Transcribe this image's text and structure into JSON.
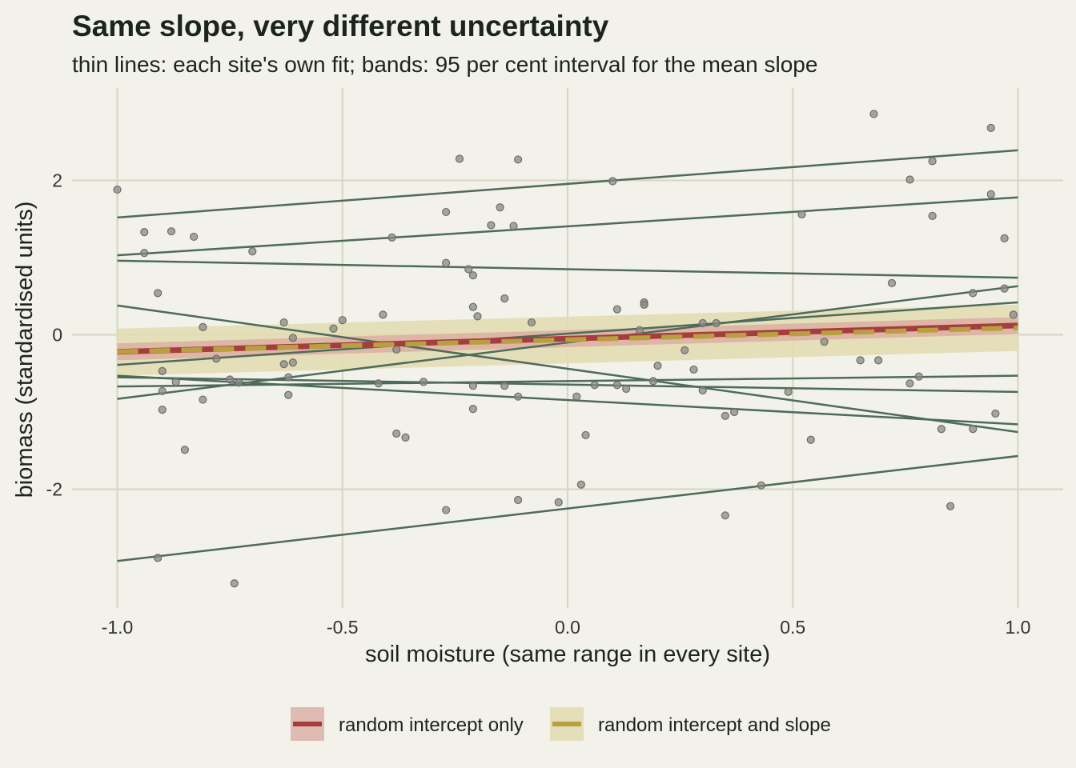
{
  "chart_data": {
    "type": "scatter",
    "title": "Same slope, very different uncertainty",
    "subtitle": "thin lines: each site's own fit; bands: 95 per cent interval for the mean slope",
    "xlabel": "soil moisture (same range in every site)",
    "ylabel": "biomass (standardised units)",
    "xlim": [
      -1.1,
      1.1
    ],
    "ylim": [
      -3.5,
      3.2
    ],
    "xticks": [
      -1.0,
      -0.5,
      0.0,
      0.5,
      1.0
    ],
    "xtick_labels": [
      "-1.0",
      "-0.5",
      "0.0",
      "0.5",
      "1.0"
    ],
    "yticks": [
      2,
      0,
      -2
    ],
    "ytick_labels": [
      "2",
      "0",
      "-2"
    ],
    "grid": true,
    "legend_position": "bottom",
    "colors": {
      "background": "#f2f1ea",
      "site_lines": "#4d6b5c",
      "points": "#8a8a84",
      "random_intercept": "#a63d3d",
      "random_intercept_band": "#d9a8a0",
      "random_slope": "#b8a040",
      "random_slope_band": "#e3dcb0"
    },
    "points": [
      {
        "x": -1.0,
        "y": 1.88
      },
      {
        "x": -0.94,
        "y": 1.33
      },
      {
        "x": -0.94,
        "y": 1.06
      },
      {
        "x": -0.88,
        "y": 1.34
      },
      {
        "x": -0.83,
        "y": 1.27
      },
      {
        "x": -0.91,
        "y": 0.54
      },
      {
        "x": -0.7,
        "y": 1.08
      },
      {
        "x": -0.81,
        "y": 0.1
      },
      {
        "x": -0.9,
        "y": -0.47
      },
      {
        "x": -0.87,
        "y": -0.61
      },
      {
        "x": -0.9,
        "y": -0.73
      },
      {
        "x": -0.9,
        "y": -0.97
      },
      {
        "x": -0.81,
        "y": -0.84
      },
      {
        "x": -0.78,
        "y": -0.31
      },
      {
        "x": -0.75,
        "y": -0.58
      },
      {
        "x": -0.73,
        "y": -0.62
      },
      {
        "x": -0.85,
        "y": -1.49
      },
      {
        "x": -0.91,
        "y": -2.89
      },
      {
        "x": -0.74,
        "y": -3.22
      },
      {
        "x": -0.63,
        "y": 0.16
      },
      {
        "x": -0.61,
        "y": -0.04
      },
      {
        "x": -0.63,
        "y": -0.38
      },
      {
        "x": -0.62,
        "y": -0.55
      },
      {
        "x": -0.61,
        "y": -0.36
      },
      {
        "x": -0.62,
        "y": -0.78
      },
      {
        "x": -0.52,
        "y": 0.08
      },
      {
        "x": -0.5,
        "y": 0.19
      },
      {
        "x": -0.41,
        "y": 0.26
      },
      {
        "x": -0.39,
        "y": 1.26
      },
      {
        "x": -0.38,
        "y": -0.19
      },
      {
        "x": -0.42,
        "y": -0.63
      },
      {
        "x": -0.32,
        "y": -0.61
      },
      {
        "x": -0.38,
        "y": -1.28
      },
      {
        "x": -0.36,
        "y": -1.33
      },
      {
        "x": -0.27,
        "y": -2.27
      },
      {
        "x": -0.24,
        "y": 2.28
      },
      {
        "x": -0.27,
        "y": 1.59
      },
      {
        "x": -0.27,
        "y": 0.93
      },
      {
        "x": -0.22,
        "y": 0.85
      },
      {
        "x": -0.21,
        "y": 0.77
      },
      {
        "x": -0.21,
        "y": 0.36
      },
      {
        "x": -0.2,
        "y": 0.24
      },
      {
        "x": -0.17,
        "y": 1.42
      },
      {
        "x": -0.15,
        "y": 1.65
      },
      {
        "x": -0.14,
        "y": 0.47
      },
      {
        "x": -0.12,
        "y": 1.41
      },
      {
        "x": -0.11,
        "y": 2.27
      },
      {
        "x": -0.11,
        "y": -0.8
      },
      {
        "x": -0.14,
        "y": -0.66
      },
      {
        "x": -0.21,
        "y": -0.66
      },
      {
        "x": -0.21,
        "y": -0.96
      },
      {
        "x": -0.08,
        "y": 0.16
      },
      {
        "x": -0.11,
        "y": -2.14
      },
      {
        "x": -0.02,
        "y": -2.17
      },
      {
        "x": 0.02,
        "y": -0.8
      },
      {
        "x": 0.03,
        "y": -1.94
      },
      {
        "x": 0.04,
        "y": -1.3
      },
      {
        "x": 0.06,
        "y": -0.65
      },
      {
        "x": 0.1,
        "y": 1.99
      },
      {
        "x": 0.11,
        "y": 0.33
      },
      {
        "x": 0.11,
        "y": -0.65
      },
      {
        "x": 0.13,
        "y": -0.7
      },
      {
        "x": 0.16,
        "y": 0.06
      },
      {
        "x": 0.17,
        "y": 0.42
      },
      {
        "x": 0.17,
        "y": 0.39
      },
      {
        "x": 0.19,
        "y": -0.6
      },
      {
        "x": 0.2,
        "y": -0.4
      },
      {
        "x": 0.26,
        "y": -0.2
      },
      {
        "x": 0.28,
        "y": -0.45
      },
      {
        "x": 0.3,
        "y": 0.15
      },
      {
        "x": 0.3,
        "y": -0.72
      },
      {
        "x": 0.33,
        "y": 0.15
      },
      {
        "x": 0.35,
        "y": -1.05
      },
      {
        "x": 0.37,
        "y": -1.0
      },
      {
        "x": 0.35,
        "y": -2.34
      },
      {
        "x": 0.43,
        "y": -1.95
      },
      {
        "x": 0.49,
        "y": -0.74
      },
      {
        "x": 0.52,
        "y": 1.56
      },
      {
        "x": 0.54,
        "y": -1.36
      },
      {
        "x": 0.57,
        "y": -0.09
      },
      {
        "x": 0.65,
        "y": -0.33
      },
      {
        "x": 0.68,
        "y": 2.86
      },
      {
        "x": 0.69,
        "y": -0.33
      },
      {
        "x": 0.72,
        "y": 0.67
      },
      {
        "x": 0.76,
        "y": 2.01
      },
      {
        "x": 0.76,
        "y": -0.63
      },
      {
        "x": 0.78,
        "y": -0.54
      },
      {
        "x": 0.81,
        "y": 2.25
      },
      {
        "x": 0.81,
        "y": 1.54
      },
      {
        "x": 0.83,
        "y": -1.22
      },
      {
        "x": 0.85,
        "y": -2.22
      },
      {
        "x": 0.9,
        "y": 0.54
      },
      {
        "x": 0.9,
        "y": -1.22
      },
      {
        "x": 0.94,
        "y": 2.68
      },
      {
        "x": 0.94,
        "y": 1.82
      },
      {
        "x": 0.95,
        "y": -1.02
      },
      {
        "x": 0.97,
        "y": 1.25
      },
      {
        "x": 0.97,
        "y": 0.6
      },
      {
        "x": 0.99,
        "y": 0.26
      }
    ],
    "site_fits": [
      {
        "y_at_x_minus1": 1.52,
        "y_at_x_plus1": 2.39
      },
      {
        "y_at_x_minus1": 1.03,
        "y_at_x_plus1": 1.78
      },
      {
        "y_at_x_minus1": 0.96,
        "y_at_x_plus1": 0.74
      },
      {
        "y_at_x_minus1": 0.38,
        "y_at_x_plus1": -1.26
      },
      {
        "y_at_x_minus1": -0.39,
        "y_at_x_plus1": 0.42
      },
      {
        "y_at_x_minus1": -0.83,
        "y_at_x_plus1": 0.63
      },
      {
        "y_at_x_minus1": -0.53,
        "y_at_x_plus1": -1.16
      },
      {
        "y_at_x_minus1": -0.55,
        "y_at_x_plus1": -0.74
      },
      {
        "y_at_x_minus1": -0.67,
        "y_at_x_plus1": -0.53
      },
      {
        "y_at_x_minus1": -2.93,
        "y_at_x_plus1": -1.57
      }
    ],
    "series": [
      {
        "name": "random intercept only",
        "line": {
          "y_at_x_minus1": -0.22,
          "y_at_x_plus1": 0.12
        },
        "band": {
          "lower_at_x_minus1": -0.33,
          "upper_at_x_minus1": -0.11,
          "lower_at_x_plus1": 0.01,
          "upper_at_x_plus1": 0.23
        }
      },
      {
        "name": "random intercept and slope",
        "line": {
          "y_at_x_minus1": -0.22,
          "y_at_x_plus1": 0.09
        },
        "band": {
          "lower_at_x_minus1": -0.53,
          "upper_at_x_minus1": 0.08,
          "lower_at_x_plus1": -0.21,
          "upper_at_x_plus1": 0.39
        }
      }
    ]
  }
}
